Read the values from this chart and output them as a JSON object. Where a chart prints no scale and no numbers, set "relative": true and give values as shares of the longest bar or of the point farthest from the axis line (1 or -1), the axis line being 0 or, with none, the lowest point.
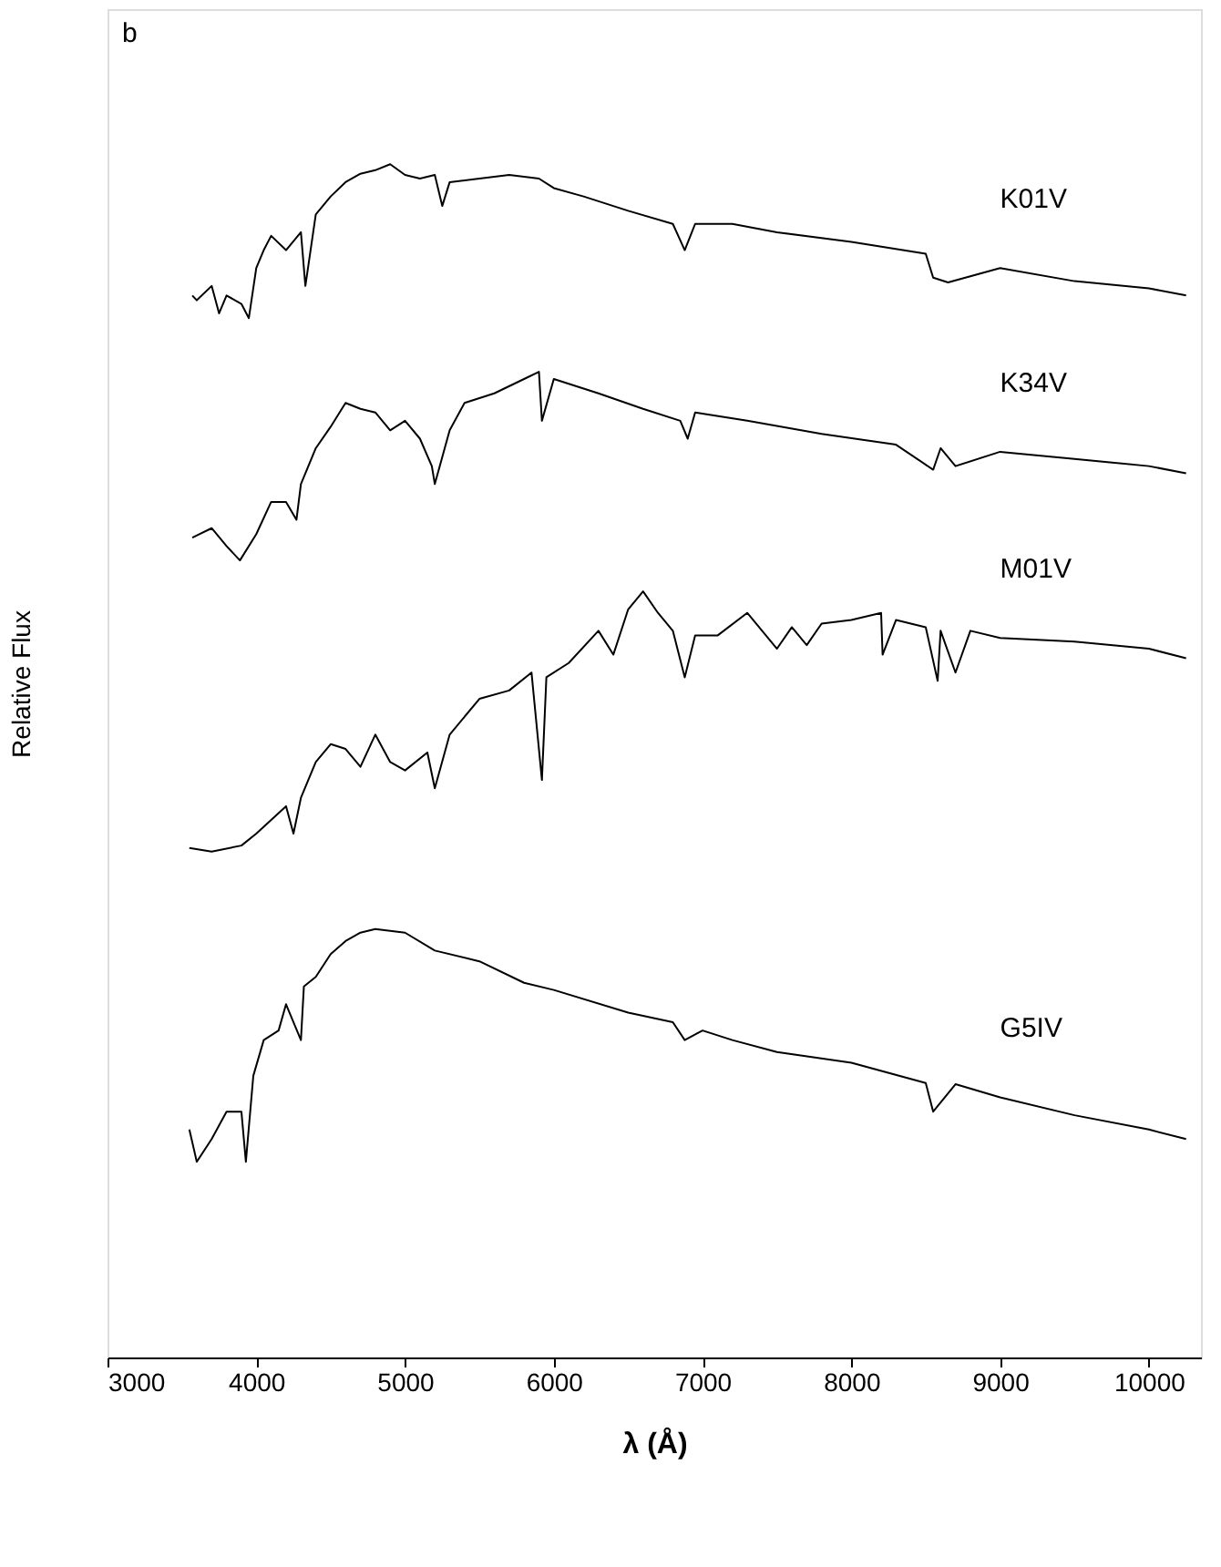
{
  "chart_data": {
    "type": "line",
    "relative": true,
    "xlabel": "λ (Å)",
    "ylabel": "Relative Flux",
    "annotations": [
      "b"
    ],
    "xlim": [
      3000,
      10350
    ],
    "xticks": [
      3000,
      4000,
      5000,
      6000,
      7000,
      8000,
      9000,
      10000
    ],
    "grid": false,
    "legend": false,
    "marker": "none",
    "line_style": "solid",
    "series": [
      {
        "name": "K01V",
        "color": "#000000",
        "x": [
          3570,
          3600,
          3700,
          3750,
          3800,
          3900,
          3950,
          4000,
          4050,
          4100,
          4200,
          4300,
          4330,
          4400,
          4500,
          4600,
          4700,
          4800,
          4900,
          5000,
          5100,
          5200,
          5250,
          5300,
          5500,
          5700,
          5900,
          6000,
          6200,
          6500,
          6800,
          6880,
          6950,
          7200,
          7500,
          8000,
          8500,
          8550,
          8650,
          9000,
          9500,
          10000,
          10250
        ],
        "values": [
          0.89,
          0.886,
          0.898,
          0.875,
          0.89,
          0.883,
          0.871,
          0.913,
          0.928,
          0.94,
          0.928,
          0.943,
          0.898,
          0.958,
          0.973,
          0.985,
          0.992,
          0.995,
          1.0,
          0.991,
          0.988,
          0.991,
          0.965,
          0.985,
          0.988,
          0.991,
          0.988,
          0.98,
          0.973,
          0.961,
          0.95,
          0.928,
          0.95,
          0.95,
          0.943,
          0.935,
          0.925,
          0.905,
          0.901,
          0.913,
          0.902,
          0.896,
          0.89
        ]
      },
      {
        "name": "K34V",
        "color": "#000000",
        "x": [
          3570,
          3700,
          3800,
          3890,
          4000,
          4100,
          4200,
          4270,
          4300,
          4400,
          4500,
          4600,
          4700,
          4800,
          4900,
          5000,
          5100,
          5180,
          5200,
          5300,
          5400,
          5600,
          5800,
          5900,
          5920,
          6000,
          6300,
          6600,
          6850,
          6900,
          6950,
          7300,
          7800,
          8300,
          8550,
          8600,
          8700,
          9000,
          9500,
          10000,
          10250
        ],
        "values": [
          0.687,
          0.695,
          0.68,
          0.668,
          0.69,
          0.717,
          0.717,
          0.702,
          0.732,
          0.762,
          0.78,
          0.8,
          0.795,
          0.792,
          0.777,
          0.785,
          0.77,
          0.747,
          0.732,
          0.777,
          0.8,
          0.808,
          0.82,
          0.826,
          0.785,
          0.82,
          0.808,
          0.795,
          0.785,
          0.77,
          0.792,
          0.785,
          0.774,
          0.765,
          0.744,
          0.762,
          0.747,
          0.759,
          0.753,
          0.747,
          0.741
        ]
      },
      {
        "name": "M01V",
        "color": "#000000",
        "x": [
          3550,
          3700,
          3900,
          4000,
          4200,
          4250,
          4300,
          4400,
          4500,
          4600,
          4700,
          4800,
          4900,
          5000,
          5150,
          5200,
          5300,
          5500,
          5700,
          5850,
          5920,
          5950,
          6100,
          6300,
          6400,
          6500,
          6600,
          6700,
          6800,
          6880,
          6950,
          7100,
          7300,
          7500,
          7600,
          7700,
          7800,
          8000,
          8200,
          8210,
          8300,
          8500,
          8580,
          8600,
          8700,
          8800,
          9000,
          9500,
          10000,
          10250
        ],
        "values": [
          0.427,
          0.424,
          0.429,
          0.439,
          0.462,
          0.439,
          0.469,
          0.499,
          0.514,
          0.51,
          0.495,
          0.522,
          0.499,
          0.492,
          0.507,
          0.477,
          0.522,
          0.552,
          0.559,
          0.574,
          0.484,
          0.57,
          0.582,
          0.609,
          0.589,
          0.627,
          0.642,
          0.624,
          0.609,
          0.57,
          0.605,
          0.605,
          0.624,
          0.594,
          0.612,
          0.597,
          0.615,
          0.618,
          0.624,
          0.589,
          0.618,
          0.612,
          0.567,
          0.609,
          0.574,
          0.609,
          0.603,
          0.6,
          0.594,
          0.586
        ]
      },
      {
        "name": "G5IV",
        "color": "#000000",
        "x": [
          3550,
          3600,
          3700,
          3800,
          3900,
          3930,
          3980,
          4050,
          4150,
          4200,
          4300,
          4320,
          4400,
          4500,
          4600,
          4700,
          4800,
          5000,
          5200,
          5500,
          5800,
          6000,
          6500,
          6800,
          6880,
          7000,
          7200,
          7500,
          8000,
          8500,
          8550,
          8700,
          9000,
          9500,
          10000,
          10250
        ],
        "values": [
          0.191,
          0.164,
          0.183,
          0.206,
          0.206,
          0.164,
          0.236,
          0.266,
          0.274,
          0.296,
          0.266,
          0.311,
          0.319,
          0.338,
          0.349,
          0.356,
          0.359,
          0.356,
          0.341,
          0.332,
          0.314,
          0.308,
          0.289,
          0.281,
          0.266,
          0.274,
          0.266,
          0.256,
          0.247,
          0.23,
          0.206,
          0.229,
          0.218,
          0.203,
          0.191,
          0.183
        ]
      }
    ]
  }
}
